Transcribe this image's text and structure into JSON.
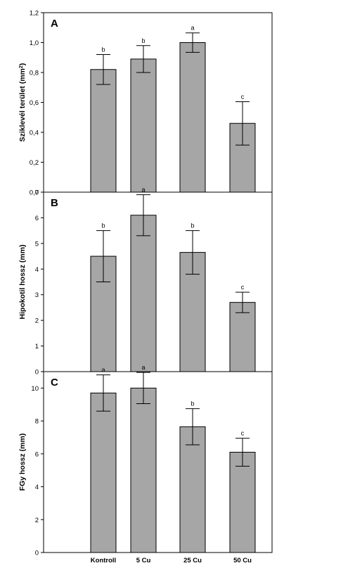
{
  "chart_data": [
    {
      "type": "bar",
      "panel": "A",
      "categories": [
        "Kontroll",
        "5 Cu",
        "25 Cu",
        "50 Cu"
      ],
      "values": [
        0.82,
        0.89,
        1.0,
        0.46
      ],
      "errors": [
        0.1,
        0.09,
        0.065,
        0.145
      ],
      "significance": [
        "b",
        "b",
        "a",
        "c"
      ],
      "ylabel_main": "Sziklevél terület (mm",
      "ylabel_sup": "2",
      "ylabel_end": ")",
      "ylim": [
        0,
        1.2
      ],
      "yticks": [
        0.0,
        0.2,
        0.4,
        0.6,
        0.8,
        1.0,
        1.2
      ],
      "ytick_labels": [
        "0,0",
        "0,2",
        "0,4",
        "0,6",
        "0,8",
        "1,0",
        "1,2"
      ],
      "show_x_labels": false
    },
    {
      "type": "bar",
      "panel": "B",
      "categories": [
        "Kontroll",
        "5 Cu",
        "25 Cu",
        "50 Cu"
      ],
      "values": [
        4.5,
        6.1,
        4.65,
        2.7
      ],
      "errors": [
        1.0,
        0.8,
        0.85,
        0.4
      ],
      "significance": [
        "b",
        "a",
        "b",
        "c"
      ],
      "ylabel_main": "Hipokotil hossz (mm)",
      "ylim": [
        0,
        7
      ],
      "yticks": [
        0,
        1,
        2,
        3,
        4,
        5,
        6,
        7
      ],
      "ytick_labels": [
        "0",
        "1",
        "2",
        "3",
        "4",
        "5",
        "6",
        "7"
      ],
      "show_x_labels": false
    },
    {
      "type": "bar",
      "panel": "C",
      "categories": [
        "Kontroll",
        "5 Cu",
        "25 Cu",
        "50 Cu"
      ],
      "values": [
        9.7,
        10.0,
        7.65,
        6.1
      ],
      "errors": [
        1.1,
        0.95,
        1.1,
        0.85
      ],
      "significance": [
        "a",
        "a",
        "b",
        "c"
      ],
      "ylabel_main": "FGy hossz (mm)",
      "ylim": [
        0,
        11
      ],
      "yticks": [
        0,
        2,
        4,
        6,
        8,
        10
      ],
      "ytick_labels": [
        "0",
        "2",
        "4",
        "6",
        "8",
        "10"
      ],
      "show_x_labels": true
    }
  ]
}
